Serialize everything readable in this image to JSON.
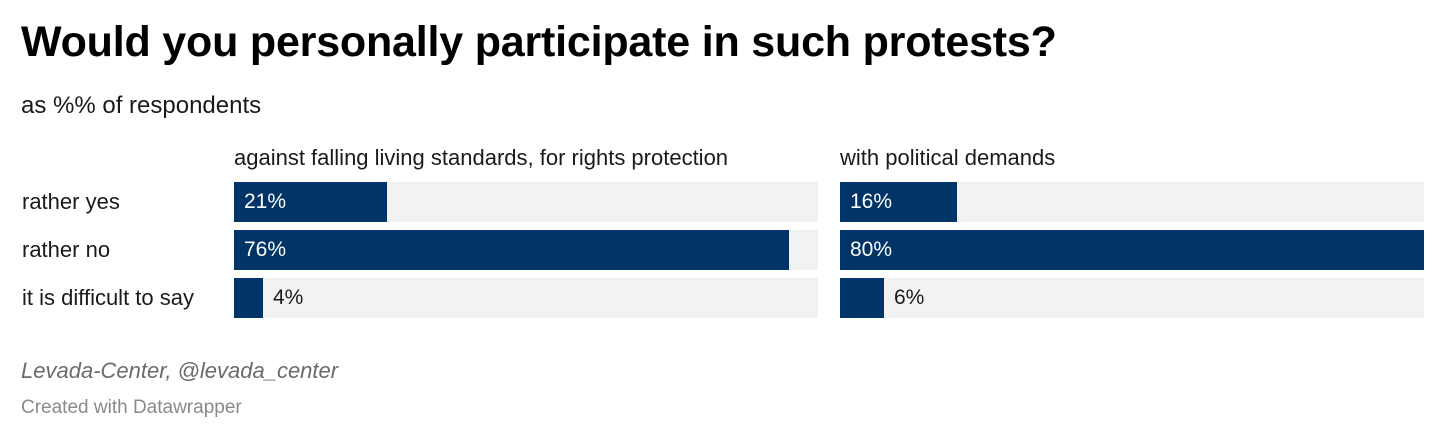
{
  "header": {
    "title": "Would you personally participate in such protests?",
    "subtitle": "as %% of respondents"
  },
  "footer": {
    "source": "Levada-Center, @levada_center",
    "credit": "Created with Datawrapper"
  },
  "colors": {
    "bar": "#003366",
    "track": "#f2f2f2"
  },
  "chart_data": {
    "type": "bar",
    "orientation": "horizontal",
    "title": "Would you personally participate in such protests?",
    "subtitle": "as %% of respondents",
    "categories": [
      "rather yes",
      "rather no",
      "it is difficult to say"
    ],
    "xlim": [
      0,
      80
    ],
    "grid": false,
    "panels": [
      {
        "title": "against falling living standards, for rights protection",
        "values": [
          21,
          76,
          4
        ],
        "labels": [
          "21%",
          "76%",
          "4%"
        ]
      },
      {
        "title": "with political demands",
        "values": [
          16,
          80,
          6
        ],
        "labels": [
          "16%",
          "80%",
          "6%"
        ]
      }
    ]
  }
}
